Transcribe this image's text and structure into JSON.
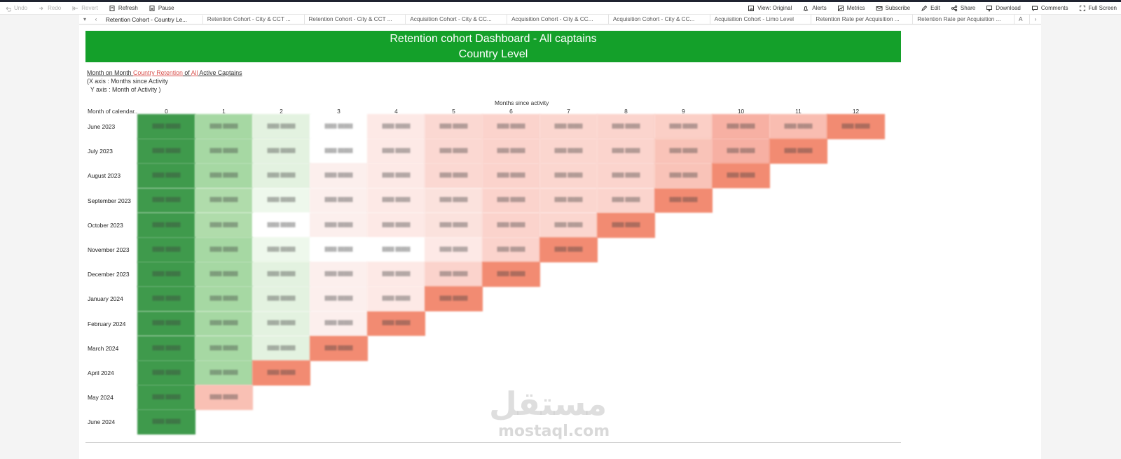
{
  "toolbar": {
    "left": [
      {
        "label": "Undo",
        "icon": "undo-icon",
        "disabled": true
      },
      {
        "label": "Redo",
        "icon": "redo-icon",
        "disabled": true
      },
      {
        "label": "Revert",
        "icon": "revert-icon",
        "disabled": true
      },
      {
        "label": "Refresh",
        "icon": "refresh-icon",
        "disabled": false
      },
      {
        "label": "Pause",
        "icon": "pause-icon",
        "disabled": false
      }
    ],
    "right": [
      {
        "label": "View: Original",
        "icon": "view-icon"
      },
      {
        "label": "Alerts",
        "icon": "bell-icon"
      },
      {
        "label": "Metrics",
        "icon": "metrics-icon"
      },
      {
        "label": "Subscribe",
        "icon": "mail-icon"
      },
      {
        "label": "Edit",
        "icon": "pencil-icon"
      },
      {
        "label": "Share",
        "icon": "share-icon"
      },
      {
        "label": "Download",
        "icon": "download-icon"
      },
      {
        "label": "Comments",
        "icon": "comment-icon"
      },
      {
        "label": "Full Screen",
        "icon": "fullscreen-icon"
      }
    ]
  },
  "tabs": [
    "Retention Cohort - Country Le...",
    "Retention Cohort - City & CCT ...",
    "Retention Cohort - City & CCT ...",
    "Acquisition Cohort - City & CC...",
    "Acquisition Cohort - City & CC...",
    "Acquisition Cohort - City & CC...",
    "Acquisition Cohort - Limo Level",
    "Retention Rate per Acquisition ...",
    "Retention Rate per Acquisition ...",
    "A"
  ],
  "banner": {
    "line1": "Retention cohort Dashboard - All captains",
    "line2": "Country Level"
  },
  "subtitle": {
    "p1": "Month on Month ",
    "p2": "Country Retention",
    "p3": " of ",
    "p4": "All",
    "p5": " Active Captains",
    "x_open": "(",
    "x_text": "X axis : Months since Activity",
    "y_text": "Y axis : Month of Activity",
    "y_close": ")"
  },
  "axis_title": "Months since activity",
  "row_header_title": "Month of calendar..",
  "columns": [
    "0",
    "1",
    "2",
    "3",
    "4",
    "5",
    "6",
    "7",
    "8",
    "9",
    "10",
    "11",
    "12"
  ],
  "rows": [
    "June 2023",
    "July 2023",
    "August 2023",
    "September 2023",
    "October 2023",
    "November 2023",
    "December 2023",
    "January 2024",
    "February 2024",
    "March 2024",
    "April 2024",
    "May 2024",
    "June 2024"
  ],
  "cell_colors": [
    [
      "#3f9a4c",
      "#a6d8a3",
      "#e3f2e0",
      "#ffffff",
      "#fde9e6",
      "#fbd8d2",
      "#fbd3cc",
      "#fbd6cf",
      "#fbd4cd",
      "#fbcfc6",
      "#f7b0a3",
      "#f9bdb1",
      "#f28b72"
    ],
    [
      "#3f9a4c",
      "#a6d8a3",
      "#e3f2e0",
      "#ffffff",
      "#fde9e6",
      "#fbd8d2",
      "#fbd3cc",
      "#fbd6cf",
      "#fbd4cd",
      "#f9c3b8",
      "#f7b0a3",
      "#f28b72"
    ],
    [
      "#3f9a4c",
      "#a6d8a3",
      "#e3f2e0",
      "#fcefed",
      "#fde9e6",
      "#fbd8d2",
      "#fbd3cc",
      "#fbd6cf",
      "#fbd4cd",
      "#f9c3b8",
      "#f28b72"
    ],
    [
      "#3f9a4c",
      "#b0dcab",
      "#eef8ec",
      "#fcefed",
      "#fde9e6",
      "#fbe2dd",
      "#fbd3cc",
      "#fbd6cf",
      "#fbd4cd",
      "#f28b72"
    ],
    [
      "#3f9a4c",
      "#b0dcab",
      "#ffffff",
      "#fcefed",
      "#fde9e6",
      "#fbe2dd",
      "#fbd3cc",
      "#fbd6cf",
      "#f28b72"
    ],
    [
      "#3f9a4c",
      "#a6d8a3",
      "#eef8ec",
      "#ffffff",
      "#ffffff",
      "#fde9e6",
      "#fbd3cc",
      "#f28b72"
    ],
    [
      "#3f9a4c",
      "#a6d8a3",
      "#e3f2e0",
      "#fcefed",
      "#fde9e6",
      "#fbd3cc",
      "#f28b72"
    ],
    [
      "#3f9a4c",
      "#a6d8a3",
      "#e3f2e0",
      "#fcefed",
      "#fde9e6",
      "#f28b72"
    ],
    [
      "#3f9a4c",
      "#a6d8a3",
      "#e3f2e0",
      "#fcefed",
      "#f28b72"
    ],
    [
      "#3f9a4c",
      "#a6d8a3",
      "#e3f2e0",
      "#f28b72"
    ],
    [
      "#3f9a4c",
      "#a6d8a3",
      "#f28b72"
    ],
    [
      "#3f9a4c",
      "#f9c0b4"
    ],
    [
      "#3f9a4c"
    ]
  ],
  "watermark": {
    "arabic": "مستقل",
    "latin": "mostaql.com"
  }
}
